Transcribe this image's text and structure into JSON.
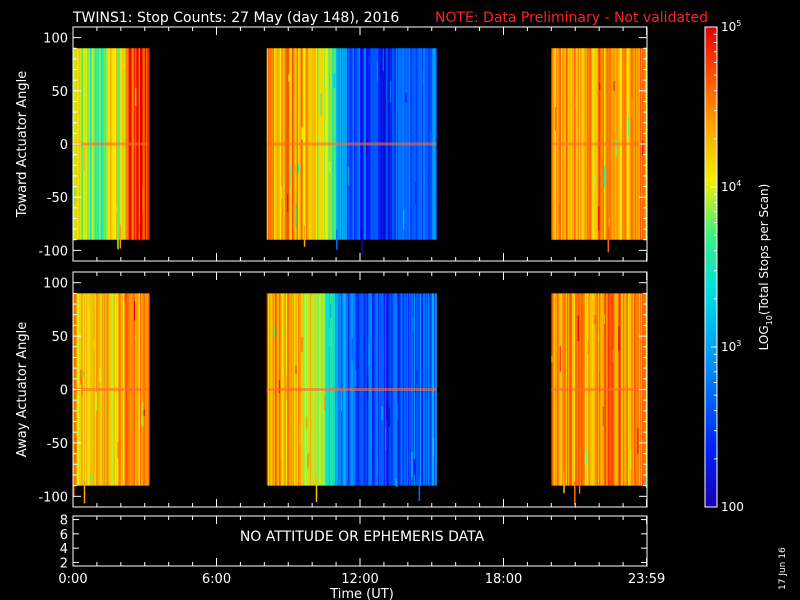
{
  "title": {
    "main": "TWINS1: Stop Counts: 27 May (day 148), 2016",
    "note": "NOTE: Data Preliminary - Not validated",
    "note_color": "#ff2020"
  },
  "timestamp": "17 Jun 16",
  "chart_data": [
    {
      "type": "heatmap",
      "panel": "top",
      "ylabel": "Toward Actuator Angle",
      "ylim": [
        -110,
        110
      ],
      "yticks": [
        100,
        50,
        0,
        -50,
        -100
      ],
      "data_ylim": [
        -90,
        90
      ],
      "xlim_hours": [
        0,
        24
      ],
      "data_segments_hours": [
        [
          0.0,
          3.15
        ],
        [
          8.1,
          15.2
        ],
        [
          20.0,
          24.0
        ]
      ],
      "segment_profiles": [
        [
          [
            0.0,
            0.72
          ],
          [
            0.5,
            0.6
          ],
          [
            1.2,
            0.55
          ],
          [
            1.6,
            0.75
          ],
          [
            2.0,
            0.62
          ],
          [
            2.3,
            0.95
          ],
          [
            3.15,
            0.9
          ]
        ],
        [
          [
            8.1,
            0.78
          ],
          [
            9.5,
            0.8
          ],
          [
            10.2,
            0.68
          ],
          [
            10.8,
            0.55
          ],
          [
            11.3,
            0.3
          ],
          [
            12.0,
            0.17
          ],
          [
            13.0,
            0.15
          ],
          [
            13.7,
            0.2
          ],
          [
            14.5,
            0.22
          ],
          [
            15.2,
            0.28
          ]
        ],
        [
          [
            20.0,
            0.8
          ],
          [
            21.0,
            0.78
          ],
          [
            22.0,
            0.82
          ],
          [
            23.0,
            0.78
          ],
          [
            24.0,
            0.8
          ]
        ]
      ]
    },
    {
      "type": "heatmap",
      "panel": "middle",
      "ylabel": "Away Actuator Angle",
      "ylim": [
        -110,
        110
      ],
      "yticks": [
        100,
        50,
        0,
        -50,
        -100
      ],
      "data_ylim": [
        -90,
        90
      ],
      "xlim_hours": [
        0,
        24
      ],
      "data_segments_hours": [
        [
          0.0,
          3.15
        ],
        [
          8.1,
          15.2
        ],
        [
          20.0,
          24.0
        ]
      ],
      "segment_profiles": [
        [
          [
            0.0,
            0.78
          ],
          [
            0.8,
            0.7
          ],
          [
            1.5,
            0.75
          ],
          [
            2.2,
            0.8
          ],
          [
            3.15,
            0.78
          ]
        ],
        [
          [
            8.1,
            0.82
          ],
          [
            9.0,
            0.78
          ],
          [
            9.8,
            0.72
          ],
          [
            10.5,
            0.55
          ],
          [
            11.2,
            0.3
          ],
          [
            12.0,
            0.2
          ],
          [
            13.0,
            0.17
          ],
          [
            14.0,
            0.2
          ],
          [
            14.8,
            0.23
          ],
          [
            15.2,
            0.3
          ]
        ],
        [
          [
            20.0,
            0.82
          ],
          [
            21.5,
            0.8
          ],
          [
            22.5,
            0.84
          ],
          [
            24.0,
            0.8
          ]
        ]
      ]
    },
    {
      "type": "line",
      "panel": "bottom",
      "message": "NO ATTITUDE OR EPHEMERIS DATA",
      "ylim": [
        1.5,
        8.5
      ],
      "yticks": [
        8,
        6,
        4,
        2
      ],
      "xlim_hours": [
        0,
        24
      ],
      "xticks_hours": [
        0,
        6,
        12,
        18,
        23.983
      ],
      "xtick_labels": [
        "0:00",
        "6:00",
        "12:00",
        "18:00",
        "23:59"
      ],
      "xlabel": "Time (UT)"
    }
  ],
  "colorbar": {
    "label": "LOG",
    "label_sub": "10",
    "label_rest": "(Total Stops per Scan)",
    "scale": "log",
    "range": [
      100,
      100000
    ],
    "ticks": [
      {
        "value": 100000,
        "base": "10",
        "exp": "5"
      },
      {
        "value": 10000,
        "base": "10",
        "exp": "4"
      },
      {
        "value": 1000,
        "base": "10",
        "exp": "3"
      },
      {
        "value": 100,
        "base": "100",
        "exp": ""
      }
    ],
    "colors": [
      "#1a00b0",
      "#0020ff",
      "#0090ff",
      "#00e0e0",
      "#40f080",
      "#f0f000",
      "#ffa000",
      "#ff4000",
      "#e00000"
    ]
  }
}
